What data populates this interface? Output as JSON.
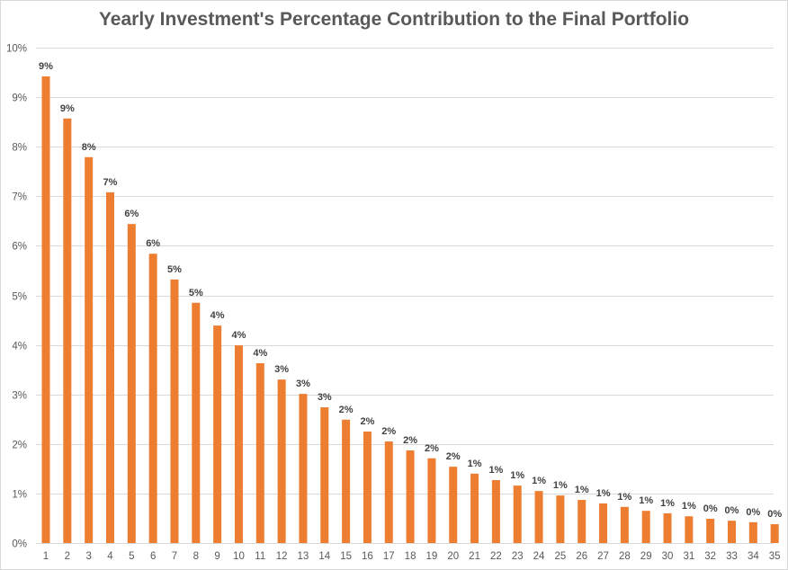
{
  "chart_data": {
    "type": "bar",
    "title": "Yearly Investment's Percentage Contribution to the Final Portfolio",
    "xlabel": "",
    "ylabel": "",
    "ylim": [
      0,
      10
    ],
    "y_ticks": [
      "0%",
      "1%",
      "2%",
      "3%",
      "4%",
      "5%",
      "6%",
      "7%",
      "8%",
      "9%",
      "10%"
    ],
    "y_tick_values": [
      0,
      1,
      2,
      3,
      4,
      5,
      6,
      7,
      8,
      9,
      10
    ],
    "grid": true,
    "legend": "none",
    "bar_color": "#ED7D31",
    "categories": [
      "1",
      "2",
      "3",
      "4",
      "5",
      "6",
      "7",
      "8",
      "9",
      "10",
      "11",
      "12",
      "13",
      "14",
      "15",
      "16",
      "17",
      "18",
      "19",
      "20",
      "21",
      "22",
      "23",
      "24",
      "25",
      "26",
      "27",
      "28",
      "29",
      "30",
      "31",
      "32",
      "33",
      "34",
      "35"
    ],
    "values": [
      9.42,
      8.57,
      7.79,
      7.08,
      6.44,
      5.84,
      5.32,
      4.85,
      4.39,
      3.99,
      3.63,
      3.3,
      3.01,
      2.74,
      2.49,
      2.25,
      2.05,
      1.87,
      1.71,
      1.54,
      1.4,
      1.27,
      1.16,
      1.05,
      0.96,
      0.87,
      0.8,
      0.73,
      0.65,
      0.6,
      0.54,
      0.49,
      0.45,
      0.42,
      0.38
    ],
    "data_labels": [
      "9%",
      "9%",
      "8%",
      "7%",
      "6%",
      "6%",
      "5%",
      "5%",
      "4%",
      "4%",
      "4%",
      "3%",
      "3%",
      "3%",
      "2%",
      "2%",
      "2%",
      "2%",
      "2%",
      "2%",
      "1%",
      "1%",
      "1%",
      "1%",
      "1%",
      "1%",
      "1%",
      "1%",
      "1%",
      "1%",
      "1%",
      "0%",
      "0%",
      "0%",
      "0%"
    ]
  }
}
